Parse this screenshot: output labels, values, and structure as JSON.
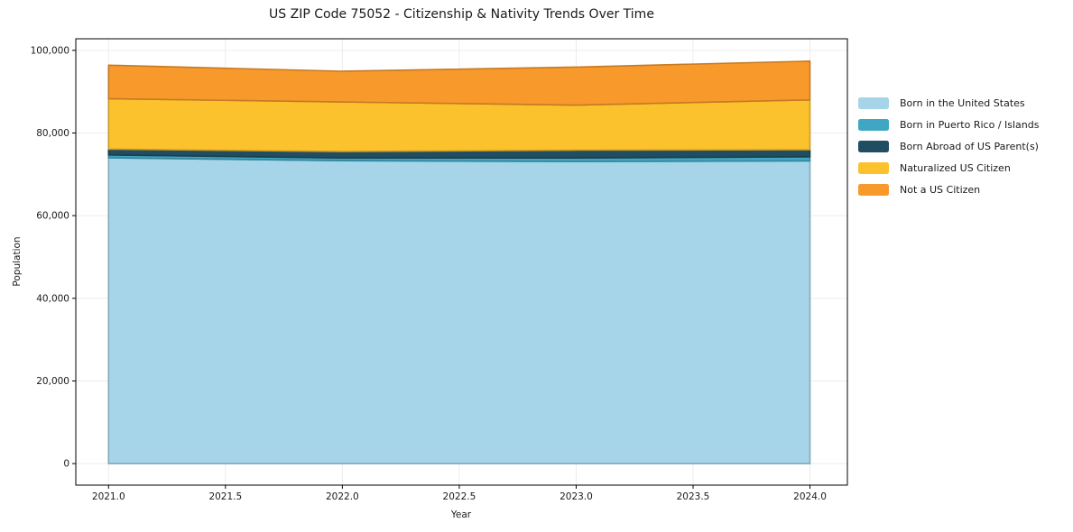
{
  "title": "US ZIP Code 75052 - Citizenship & Nativity Trends Over Time",
  "chart_data": {
    "type": "area",
    "stacked": true,
    "title": "US ZIP Code 75052 - Citizenship & Nativity Trends Over Time",
    "xlabel": "Year",
    "ylabel": "Population",
    "x": [
      2021,
      2022,
      2023,
      2024
    ],
    "series": [
      {
        "name": "Born in the United States",
        "color": "#a6d4e8",
        "values": [
          74000,
          73300,
          73100,
          73250
        ]
      },
      {
        "name": "Born in Puerto Rico / Islands",
        "color": "#3fa7c3",
        "values": [
          700,
          650,
          850,
          1000
        ]
      },
      {
        "name": "Born Abroad of US Parent(s)",
        "color": "#204d61",
        "values": [
          1400,
          1550,
          1900,
          1700
        ]
      },
      {
        "name": "Naturalized US Citizen",
        "color": "#fcc22d",
        "values": [
          12200,
          12000,
          10900,
          12050
        ]
      },
      {
        "name": "Not a US Citizen",
        "color": "#f8992b",
        "values": [
          8100,
          7450,
          9200,
          9400
        ]
      }
    ],
    "totals": [
      96400,
      94950,
      95950,
      97400
    ],
    "xticks": [
      2021.0,
      2021.5,
      2022.0,
      2022.5,
      2023.0,
      2023.5,
      2024.0
    ],
    "xtick_labels": [
      "2021.0",
      "2021.5",
      "2022.0",
      "2022.5",
      "2023.0",
      "2023.5",
      "2024.0"
    ],
    "yticks": [
      0,
      20000,
      40000,
      60000,
      80000,
      100000
    ],
    "ytick_labels": [
      "0",
      "20,000",
      "40,000",
      "60,000",
      "80,000",
      "100,000"
    ],
    "xlim": [
      2020.86,
      2024.16
    ],
    "ylim": [
      -5200,
      102800
    ],
    "grid": true,
    "grid_color": "#ececec",
    "spine_color": "#000000",
    "legend_position": "right"
  }
}
